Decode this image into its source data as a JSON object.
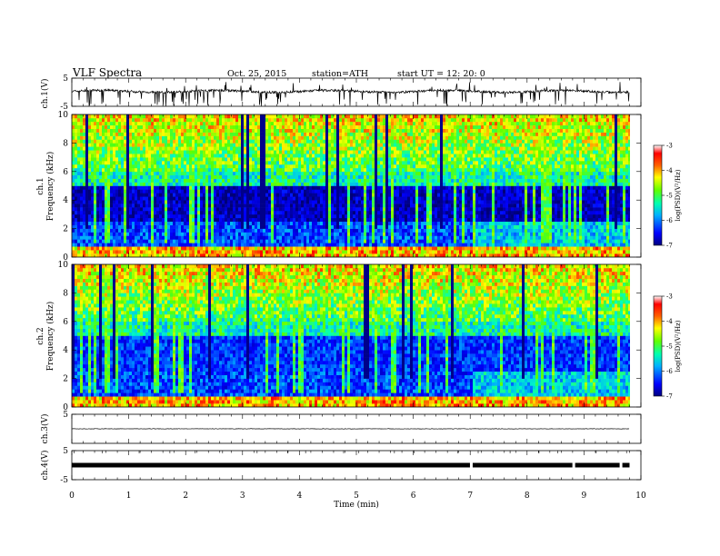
{
  "header": {
    "title": "VLF  Spectra",
    "date": "Oct. 25, 2015",
    "station": "station=ATH",
    "start": "start  UT  =    12: 20: 0"
  },
  "colors": {
    "background": "#ffffff",
    "axes": "#000000",
    "colormap": [
      "#00008b",
      "#0000ff",
      "#00a0ff",
      "#00ffff",
      "#40ff80",
      "#80ff00",
      "#ffff00",
      "#ff8000",
      "#ff0000",
      "#ffffff"
    ]
  },
  "chart_data": [
    {
      "type": "line",
      "name": "ch1-waveform",
      "ylabel": "ch.1(V)",
      "ylim": [
        -5,
        5
      ],
      "yticks": [
        "5",
        "-5"
      ],
      "xlim": [
        0,
        10
      ],
      "approx_level": 0.3,
      "note_spikes": "dense negative spikes toward -5"
    },
    {
      "type": "heatmap",
      "name": "ch1-spectrogram",
      "ylabel": [
        "ch.1",
        "Frequency  (kHz)"
      ],
      "ylim": [
        0,
        10
      ],
      "yticks": [
        "0",
        "2",
        "4",
        "6",
        "8",
        "10"
      ],
      "xlim": [
        0,
        9.8
      ],
      "colorbar": {
        "label": "log(PSD)(V²/Hz)",
        "range": [
          -7,
          -3
        ],
        "ticks": [
          "-3",
          "-4",
          "-5",
          "-6",
          "-7"
        ]
      }
    },
    {
      "type": "heatmap",
      "name": "ch2-spectrogram",
      "ylabel": [
        "ch.2",
        "Frequency  (kHz)"
      ],
      "ylim": [
        0,
        10
      ],
      "yticks": [
        "0",
        "2",
        "4",
        "6",
        "8",
        "10"
      ],
      "xlim": [
        0,
        9.8
      ],
      "colorbar": {
        "label": "log(PSD)(V²/Hz)",
        "range": [
          -7,
          -3
        ],
        "ticks": [
          "-3",
          "-4",
          "-5",
          "-6",
          "-7"
        ]
      }
    },
    {
      "type": "line",
      "name": "ch3-waveform",
      "ylabel": "ch.3(V)",
      "ylim": [
        -5,
        5
      ],
      "yticks": [
        "5",
        "-5"
      ],
      "xlim": [
        0,
        10
      ],
      "approx_level": 0.0
    },
    {
      "type": "line",
      "name": "ch4-waveform",
      "ylabel": "ch.4(V)",
      "ylim": [
        -5,
        5
      ],
      "yticks": [
        "5",
        "-5"
      ],
      "xlim": [
        0,
        10
      ],
      "approx_level": 0.0,
      "gaps_min": [
        7.02,
        8.82,
        9.65
      ]
    }
  ],
  "xaxis": {
    "label": "Time  (min)",
    "range": [
      0,
      10
    ],
    "ticks": [
      "0",
      "1",
      "2",
      "3",
      "4",
      "5",
      "6",
      "7",
      "8",
      "9",
      "10"
    ]
  }
}
